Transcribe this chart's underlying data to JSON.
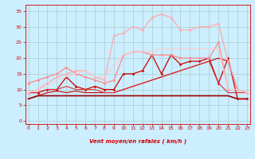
{
  "background_color": "#cceeff",
  "grid_color": "#aacccc",
  "x_label": "Vent moyen/en rafales ( km/h )",
  "x_ticks": [
    0,
    1,
    2,
    3,
    4,
    5,
    6,
    7,
    8,
    9,
    10,
    11,
    12,
    13,
    14,
    15,
    16,
    17,
    18,
    19,
    20,
    21,
    22,
    23
  ],
  "y_ticks": [
    0,
    5,
    10,
    15,
    20,
    25,
    30,
    35
  ],
  "ylim": [
    -1,
    37
  ],
  "xlim": [
    -0.3,
    23.3
  ],
  "series": [
    {
      "x": [
        0,
        1,
        2,
        3,
        4,
        5,
        6,
        7,
        8,
        9,
        10,
        11,
        12,
        13,
        14,
        15,
        16,
        17,
        18,
        19,
        20,
        21,
        22,
        23
      ],
      "y": [
        7,
        8,
        9,
        9.5,
        9,
        9.5,
        9,
        9,
        9,
        9,
        10,
        11,
        12,
        13,
        14,
        15,
        16,
        17,
        18,
        19,
        20,
        19,
        10,
        9
      ],
      "color": "#cc0000",
      "lw": 0.8,
      "marker": null,
      "ms": 0
    },
    {
      "x": [
        0,
        1,
        2,
        3,
        4,
        5,
        6,
        7,
        8,
        9,
        10,
        11,
        12,
        13,
        14,
        15,
        16,
        17,
        18,
        19,
        20,
        21,
        22,
        23
      ],
      "y": [
        7,
        8,
        8,
        8,
        8,
        8,
        8,
        8,
        8,
        8,
        8,
        8,
        8,
        8,
        8,
        8,
        8,
        8,
        8,
        8,
        8,
        8,
        7,
        7
      ],
      "color": "#990000",
      "lw": 1.2,
      "marker": null,
      "ms": 0
    },
    {
      "x": [
        0,
        1,
        2,
        3,
        4,
        5,
        6,
        7,
        8,
        9,
        10,
        11,
        12,
        13,
        14,
        15,
        16,
        17,
        18,
        19,
        20,
        21,
        22,
        23
      ],
      "y": [
        9,
        9,
        10,
        10,
        14,
        11,
        10,
        11,
        10,
        10,
        15,
        15,
        16,
        21,
        15,
        21,
        18,
        19,
        19,
        20,
        12,
        20,
        7,
        7
      ],
      "color": "#cc0000",
      "lw": 0.9,
      "marker": "D",
      "ms": 1.8
    },
    {
      "x": [
        0,
        1,
        2,
        3,
        4,
        5,
        6,
        7,
        8,
        9,
        10,
        11,
        12,
        13,
        14,
        15,
        16,
        17,
        18,
        19,
        20,
        21,
        22,
        23
      ],
      "y": [
        9,
        9,
        10,
        10,
        11,
        10,
        10,
        10,
        9,
        9,
        10,
        11,
        12,
        13,
        14,
        15,
        16,
        17,
        18,
        19,
        12,
        9,
        9,
        9
      ],
      "color": "#dd3333",
      "lw": 0.8,
      "marker": null,
      "ms": 0
    },
    {
      "x": [
        0,
        1,
        2,
        3,
        4,
        5,
        6,
        7,
        8,
        9,
        10,
        11,
        12,
        13,
        14,
        15,
        16,
        17,
        18,
        19,
        20,
        21,
        22,
        23
      ],
      "y": [
        12,
        13,
        14,
        15,
        17,
        15,
        14,
        13,
        12,
        13,
        21,
        22,
        22,
        21,
        21,
        21,
        20,
        20,
        20,
        20,
        25,
        10,
        10,
        9
      ],
      "color": "#ff8888",
      "lw": 0.9,
      "marker": "D",
      "ms": 1.8
    },
    {
      "x": [
        0,
        1,
        2,
        3,
        4,
        5,
        6,
        7,
        8,
        9,
        10,
        11,
        12,
        13,
        14,
        15,
        16,
        17,
        18,
        19,
        20,
        21,
        22,
        23
      ],
      "y": [
        9,
        10,
        12,
        14,
        15,
        16,
        16,
        14,
        13,
        27,
        28,
        30,
        29,
        33,
        34,
        33,
        29,
        29,
        30,
        30,
        31,
        19,
        10,
        9
      ],
      "color": "#ffaaaa",
      "lw": 0.9,
      "marker": "D",
      "ms": 1.8
    },
    {
      "x": [
        0,
        1,
        2,
        3,
        4,
        5,
        6,
        7,
        8,
        9,
        10,
        11,
        12,
        13,
        14,
        15,
        16,
        17,
        18,
        19,
        20,
        21,
        22,
        23
      ],
      "y": [
        9,
        10,
        11,
        13,
        14,
        15,
        16,
        14,
        14,
        18,
        21,
        22,
        22,
        22,
        23,
        23,
        23,
        23,
        23,
        23,
        23,
        10,
        10,
        9
      ],
      "color": "#ffcccc",
      "lw": 0.8,
      "marker": null,
      "ms": 0
    }
  ],
  "arrow_chars": [
    "↙",
    "↙",
    "↙",
    "↙",
    "↙",
    "↙",
    "↙",
    "↙",
    "↙",
    "↓",
    "↗",
    "↗",
    "↑",
    "↗",
    "↗",
    "↗",
    "↑",
    "↗",
    "↗",
    "↗",
    "↗",
    "↗",
    "↙",
    "↙"
  ]
}
